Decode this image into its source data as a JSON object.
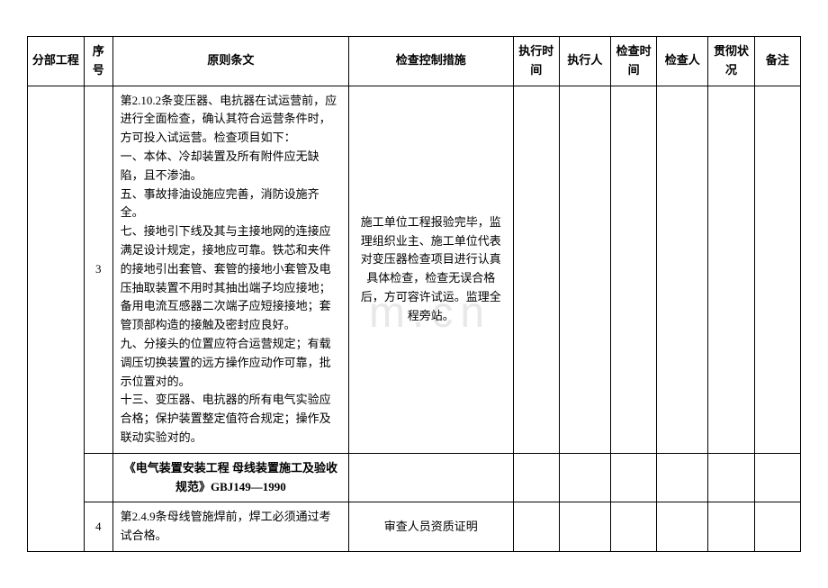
{
  "watermark": "m.cn",
  "table": {
    "headers": {
      "sub_project": "分部工程",
      "seq": "序号",
      "principle": "原则条文",
      "measure": "检查控制措施",
      "exec_time": "执行时间",
      "exec_person": "执行人",
      "check_time": "检查时间",
      "check_person": "检查人",
      "status": "贯彻状况",
      "remark": "备注"
    },
    "rows": [
      {
        "seq": "3",
        "principle": "第2.10.2条变压器、电抗器在试运营前，应进行全面检查，确认其符合运营条件时，方可投入试运营。检查项目如下：\n一、本体、冷却装置及所有附件应无缺陷，且不渗油。\n五、事故排油设施应完善，消防设施齐全。\n七、接地引下线及其与主接地网的连接应满足设计规定，接地应可靠。铁芯和夹件的接地引出套管、套管的接地小套管及电压抽取装置不用时其抽出端子均应接地；备用电流互感器二次端子应短接接地；套管顶部构造的接触及密封应良好。\n九、分接头的位置应符合运营规定；有载调压切换装置的远方操作应动作可靠，批示位置对的。\n十三、变压器、电抗器的所有电气实验应合格；保护装置整定值符合规定；操作及联动实验对的。",
        "measure": "施工单位工程报验完毕，监理组织业主、施工单位代表对变压器检查项目进行认真具体检查，检查无误合格后，方可容许试运。监理全程旁站。"
      },
      {
        "section_header": "《电气装置安装工程 母线装置施工及验收规范》GBJ149—1990"
      },
      {
        "seq": "4",
        "principle": "第2.4.9条母线管施焊前，焊工必须通过考试合格。",
        "measure": "审查人员资质证明"
      }
    ]
  }
}
